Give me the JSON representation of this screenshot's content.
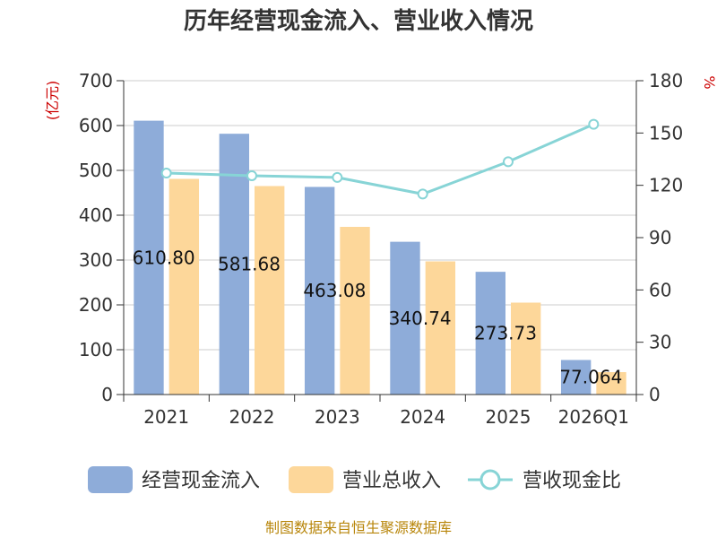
{
  "chart_data": {
    "type": "bar",
    "title": "历年经营现金流入、营业收入情况",
    "categories": [
      "2021",
      "2022",
      "2023",
      "2024",
      "2025",
      "2026Q1"
    ],
    "left_unit": "(亿元)",
    "right_unit": "%",
    "ylim_left": [
      0,
      700
    ],
    "yticks_left": [
      "0",
      "100",
      "200",
      "300",
      "400",
      "500",
      "600",
      "700"
    ],
    "ylim_right": [
      0,
      180
    ],
    "yticks_right": [
      "0",
      "30",
      "60",
      "90",
      "120",
      "150",
      "180"
    ],
    "series": [
      {
        "name": "经营现金流入",
        "type": "bar",
        "axis": "left",
        "color": "#8eacd9",
        "values": [
          610.8,
          581.68,
          463.08,
          340.74,
          273.73,
          77.06
        ],
        "labels": [
          "610.80",
          "581.68",
          "463.08",
          "340.74",
          "273.73",
          "77.064"
        ]
      },
      {
        "name": "营业总收入",
        "type": "bar",
        "axis": "left",
        "color": "#fdd79a",
        "values": [
          481,
          465,
          374,
          297,
          205,
          50
        ]
      },
      {
        "name": "营收现金比",
        "type": "line",
        "axis": "right",
        "color": "#87d4d6",
        "values": [
          127,
          125.5,
          124.5,
          115,
          133.5,
          155
        ]
      }
    ],
    "grid": true,
    "legend_position": "bottom"
  },
  "source_text": "制图数据来自恒生聚源数据库"
}
